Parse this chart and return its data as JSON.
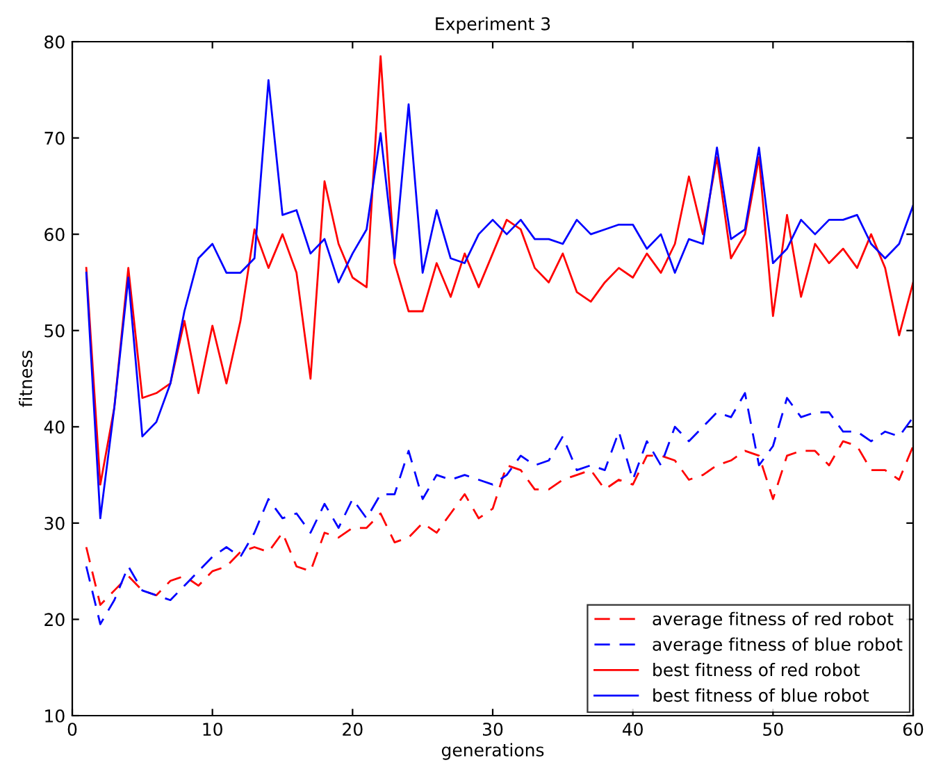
{
  "chart_data": {
    "type": "line",
    "title": "Experiment 3",
    "xlabel": "generations",
    "ylabel": "fitness",
    "x": [
      1,
      2,
      3,
      4,
      5,
      6,
      7,
      8,
      9,
      10,
      11,
      12,
      13,
      14,
      15,
      16,
      17,
      18,
      19,
      20,
      21,
      22,
      23,
      24,
      25,
      26,
      27,
      28,
      29,
      30,
      31,
      32,
      33,
      34,
      35,
      36,
      37,
      38,
      39,
      40,
      41,
      42,
      43,
      44,
      45,
      46,
      47,
      48,
      49,
      50,
      51,
      52,
      53,
      54,
      55,
      56,
      57,
      58,
      59,
      60
    ],
    "xlim": [
      0,
      60
    ],
    "xticks": [
      0,
      10,
      20,
      30,
      40,
      50,
      60
    ],
    "ylim": [
      10,
      80
    ],
    "yticks": [
      10,
      20,
      30,
      40,
      50,
      60,
      70,
      80
    ],
    "grid": false,
    "legend": "bottom right",
    "marker": "none",
    "series": [
      {
        "name": "average fitness of red robot",
        "color": "#ff0000",
        "line_style": "dashed",
        "values": [
          27.5,
          21.5,
          23,
          24.5,
          23,
          22.5,
          24,
          24.5,
          23.5,
          25,
          25.5,
          27,
          27.5,
          27,
          29,
          25.5,
          25,
          29,
          28.5,
          29.5,
          29.5,
          31,
          28,
          28.5,
          30,
          29,
          31,
          33,
          30.5,
          31.5,
          36,
          35.5,
          33.5,
          33.5,
          34.5,
          35,
          35.5,
          33.5,
          34.5,
          34,
          37,
          37,
          36.5,
          34.5,
          35,
          36,
          36.5,
          37.5,
          37,
          32.5,
          37,
          37.5,
          37.5,
          36,
          38.5,
          38,
          35.5,
          35.5,
          34.5,
          38
        ]
      },
      {
        "name": "average fitness of blue robot",
        "color": "#0000ff",
        "line_style": "dashed",
        "values": [
          25.5,
          19.5,
          22,
          25.5,
          23,
          22.5,
          22,
          23.5,
          25,
          26.5,
          27.5,
          26.5,
          29,
          32.5,
          30.5,
          31,
          29,
          32,
          29.5,
          32.5,
          30.5,
          33,
          33,
          37.5,
          32.5,
          35,
          34.5,
          35,
          34.5,
          34,
          35,
          37,
          36,
          36.5,
          39,
          35.5,
          36,
          35.5,
          39.5,
          34.5,
          38.5,
          36,
          40,
          38.5,
          40,
          41.5,
          41,
          43.5,
          36,
          38,
          43,
          41,
          41.5,
          41.5,
          39.5,
          39.5,
          38.5,
          39.5,
          39,
          41
        ]
      },
      {
        "name": "best fitness of red robot",
        "color": "#ff0000",
        "line_style": "solid",
        "values": [
          56.5,
          34,
          42,
          56.5,
          43,
          43.5,
          44.5,
          51,
          43.5,
          50.5,
          44.5,
          51,
          60.5,
          56.5,
          60,
          56,
          45,
          65.5,
          59,
          55.5,
          54.5,
          78.5,
          57,
          52,
          52,
          57,
          53.5,
          58,
          54.5,
          58,
          61.5,
          60.5,
          56.5,
          55,
          58,
          54,
          53,
          55,
          56.5,
          55.5,
          58,
          56,
          59,
          66,
          60,
          68,
          57.5,
          60,
          68,
          51.5,
          62,
          53.5,
          59,
          57,
          58.5,
          56.5,
          60,
          56.5,
          49.5,
          55
        ]
      },
      {
        "name": "best fitness of blue robot",
        "color": "#0000ff",
        "line_style": "solid",
        "values": [
          56,
          30.5,
          42,
          55.5,
          39,
          40.5,
          44.5,
          52,
          57.5,
          59,
          56,
          56,
          57.5,
          76,
          62,
          62.5,
          58,
          59.5,
          55,
          58,
          60.5,
          70.5,
          57.5,
          73.5,
          56,
          62.5,
          57.5,
          57,
          60,
          61.5,
          60,
          61.5,
          59.5,
          59.5,
          59,
          61.5,
          60,
          60.5,
          61,
          61,
          58.5,
          60,
          56,
          59.5,
          59,
          69,
          59.5,
          60.5,
          69,
          57,
          58.5,
          61.5,
          60,
          61.5,
          61.5,
          62,
          59,
          57.5,
          59,
          63
        ]
      }
    ]
  }
}
